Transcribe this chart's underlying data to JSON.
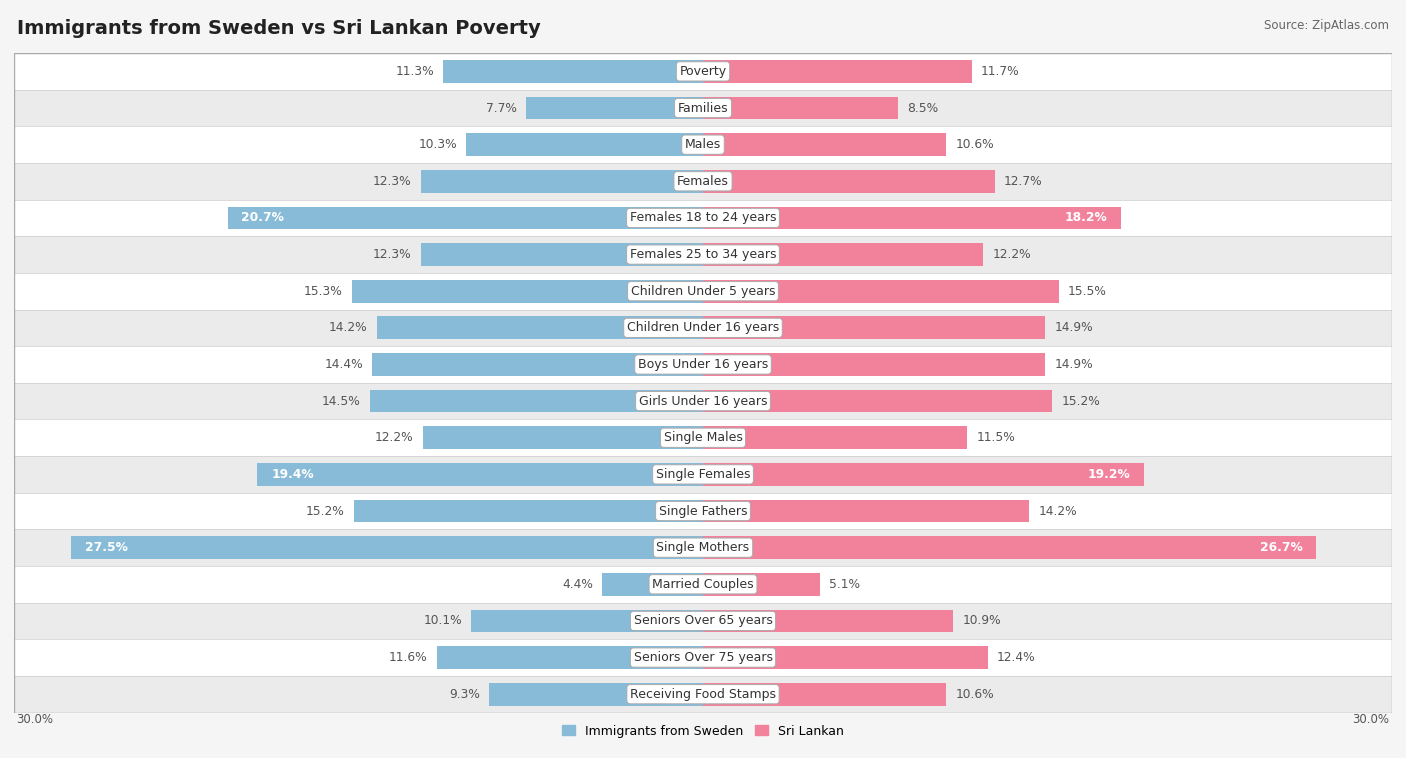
{
  "title": "Immigrants from Sweden vs Sri Lankan Poverty",
  "source": "Source: ZipAtlas.com",
  "categories": [
    "Poverty",
    "Families",
    "Males",
    "Females",
    "Females 18 to 24 years",
    "Females 25 to 34 years",
    "Children Under 5 years",
    "Children Under 16 years",
    "Boys Under 16 years",
    "Girls Under 16 years",
    "Single Males",
    "Single Females",
    "Single Fathers",
    "Single Mothers",
    "Married Couples",
    "Seniors Over 65 years",
    "Seniors Over 75 years",
    "Receiving Food Stamps"
  ],
  "sweden_values": [
    11.3,
    7.7,
    10.3,
    12.3,
    20.7,
    12.3,
    15.3,
    14.2,
    14.4,
    14.5,
    12.2,
    19.4,
    15.2,
    27.5,
    4.4,
    10.1,
    11.6,
    9.3
  ],
  "srilanka_values": [
    11.7,
    8.5,
    10.6,
    12.7,
    18.2,
    12.2,
    15.5,
    14.9,
    14.9,
    15.2,
    11.5,
    19.2,
    14.2,
    26.7,
    5.1,
    10.9,
    12.4,
    10.6
  ],
  "sweden_color": "#88bbd8",
  "srilanka_color": "#f2829c",
  "bar_height": 0.62,
  "xlim": 30.0,
  "row_colors": [
    "#ffffff",
    "#ebebeb"
  ],
  "label_fontsize": 9.0,
  "value_fontsize": 8.8,
  "title_fontsize": 14,
  "legend_label_sweden": "Immigrants from Sweden",
  "legend_label_srilanka": "Sri Lankan",
  "high_threshold": 17.5,
  "fig_bg": "#f5f5f5"
}
